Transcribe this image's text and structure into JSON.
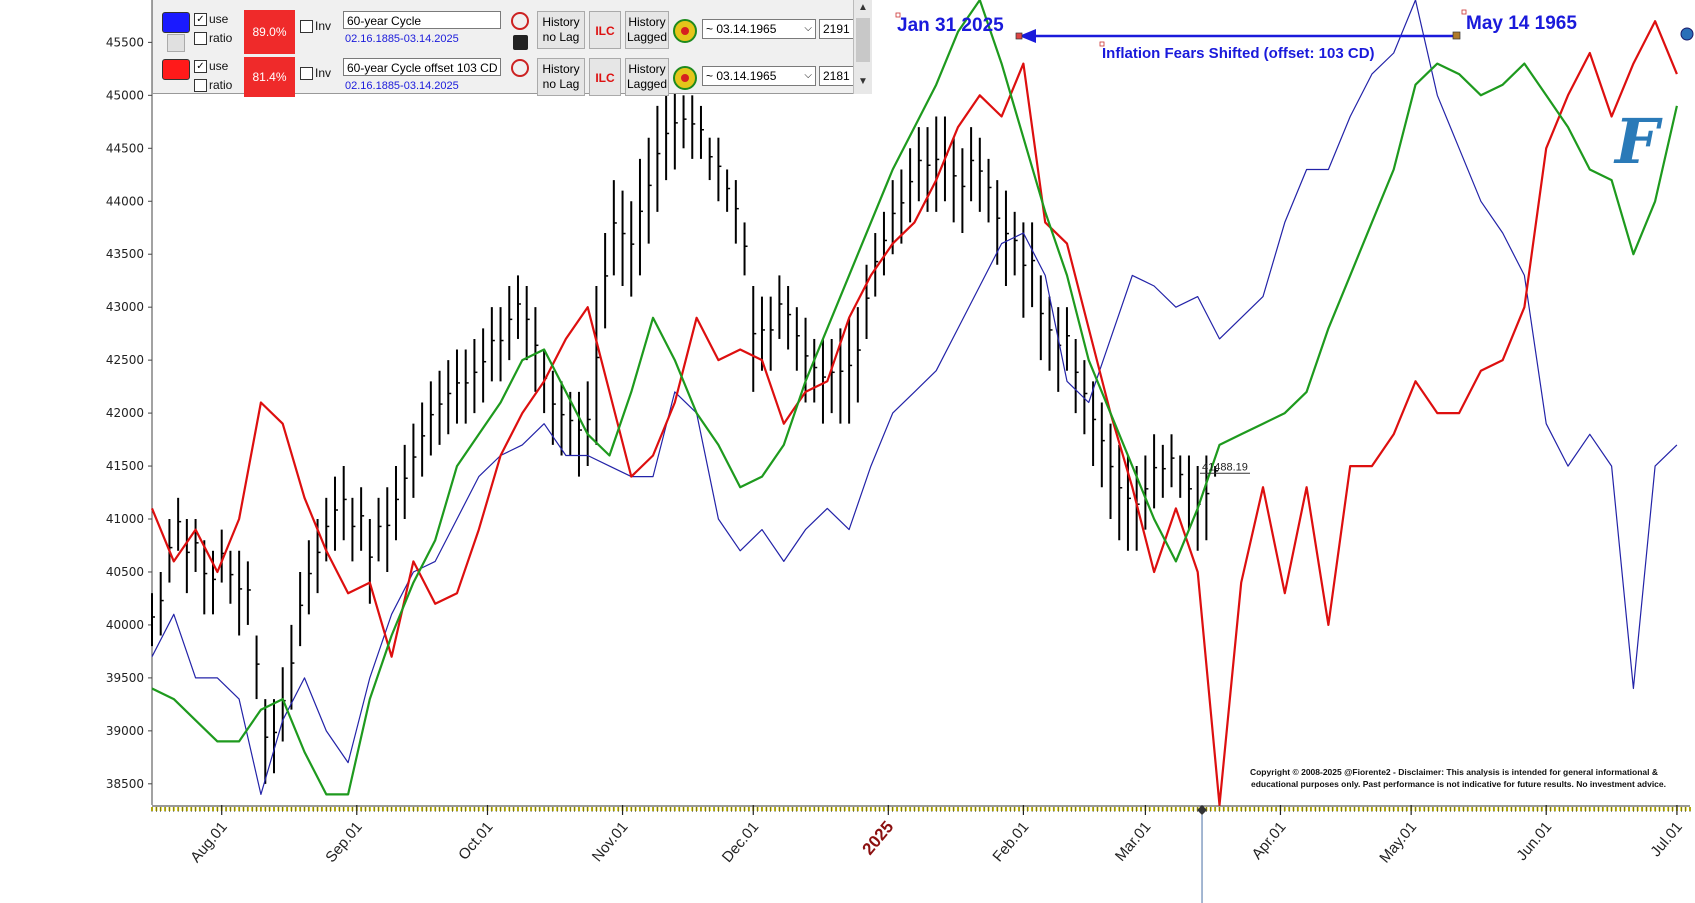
{
  "panel": {
    "rows": [
      {
        "color": "#1a1aff",
        "use_label": "use",
        "use_checked": "✓",
        "ratio_label": "ratio",
        "pct": "89.0%",
        "inv_label": "Inv",
        "cycle_name": "60-year Cycle",
        "range": "02.16.1885-03.14.2025",
        "btn_history_nolag": [
          "History",
          "no Lag"
        ],
        "btn_ilc": "ILC",
        "btn_history_lagged": [
          "History",
          "Lagged"
        ],
        "date_select": "~ 03.14.1965",
        "num": "2191"
      },
      {
        "color": "#ff1a1a",
        "use_label": "use",
        "use_checked": "✓",
        "ratio_label": "ratio",
        "pct": "81.4%",
        "inv_label": "Inv",
        "cycle_name": "60-year Cycle offset 103 CD",
        "range": "02.16.1885-03.14.2025",
        "btn_history_nolag": [
          "History",
          "no Lag"
        ],
        "btn_ilc": "ILC",
        "btn_history_lagged": [
          "History",
          "Lagged"
        ],
        "date_select": "~ 03.14.1965",
        "num": "2181"
      }
    ]
  },
  "annotations": {
    "left_date": "Jan 31 2025",
    "right_date": "May 14 1965",
    "arrow_text": "Inflation Fears Shifted (offset: 103 CD)",
    "price_label": "41488.19",
    "copyright_line1": "Copyright © 2008-2025 @Fiorente2 - Disclaimer: This analysis is intended for general informational &",
    "copyright_line2": "educational purposes only. Past performance is not indicative for future results. No investment advice.",
    "logo_letter": "F"
  },
  "colors": {
    "price_bars": "#000000",
    "cycle_blue": "#2323a8",
    "cycle_red": "#dd0f0f",
    "cycle_green": "#1e9a1e",
    "annotation": "#1a1adb"
  },
  "chart_data": {
    "type": "line",
    "ylim": [
      38300,
      45900
    ],
    "yticks": [
      38500,
      39000,
      39500,
      40000,
      40500,
      41000,
      41500,
      42000,
      42500,
      43000,
      43500,
      44000,
      44500,
      45000,
      45500
    ],
    "xlim": [
      0,
      353
    ],
    "month_ticks": [
      {
        "label": "Aug.01",
        "day": 16
      },
      {
        "label": "Sep.01",
        "day": 47
      },
      {
        "label": "Oct.01",
        "day": 77
      },
      {
        "label": "Nov.01",
        "day": 108
      },
      {
        "label": "Dec.01",
        "day": 138
      },
      {
        "label": "2025",
        "day": 169,
        "year": true
      },
      {
        "label": "Feb.01",
        "day": 200
      },
      {
        "label": "Mar.01",
        "day": 228
      },
      {
        "label": "Apr.01",
        "day": 259
      },
      {
        "label": "May.01",
        "day": 289
      },
      {
        "label": "Jun.01",
        "day": 320
      },
      {
        "label": "Jul.01",
        "day": 350
      }
    ],
    "current_day": 241,
    "legend": [],
    "series": [
      {
        "name": "60-year Cycle",
        "color": "#2323a8",
        "x": [
          0,
          5,
          10,
          15,
          20,
          25,
          30,
          35,
          40,
          45,
          50,
          55,
          60,
          65,
          70,
          75,
          80,
          85,
          90,
          95,
          100,
          105,
          110,
          115,
          120,
          125,
          130,
          135,
          140,
          145,
          150,
          155,
          160,
          165,
          170,
          175,
          180,
          185,
          190,
          195,
          200,
          205,
          210,
          215,
          220,
          225,
          230,
          235,
          240,
          245,
          250,
          255,
          260,
          265,
          270,
          275,
          280,
          285,
          290,
          295,
          300,
          305,
          310,
          315,
          320,
          325,
          330,
          335,
          340,
          345,
          350
        ],
        "y": [
          39700,
          40100,
          39500,
          39500,
          39300,
          38400,
          39100,
          39500,
          39000,
          38700,
          39500,
          40100,
          40500,
          40600,
          41000,
          41400,
          41600,
          41700,
          41900,
          41600,
          41600,
          41500,
          41400,
          41400,
          42200,
          42000,
          41000,
          40700,
          40900,
          40600,
          40900,
          41100,
          40900,
          41500,
          42000,
          42200,
          42400,
          42800,
          43200,
          43600,
          43700,
          43300,
          42300,
          42100,
          42700,
          43300,
          43200,
          43000,
          43100,
          42700,
          42900,
          43100,
          43800,
          44300,
          44300,
          44800,
          45200,
          45400,
          45900,
          45000,
          44500,
          44000,
          43700,
          43300,
          41900,
          41500,
          41800,
          41500,
          39400,
          41500,
          41700
        ]
      },
      {
        "name": "60-year Cycle offset 103 CD",
        "color": "#dd0f0f",
        "x": [
          0,
          5,
          10,
          15,
          20,
          25,
          30,
          35,
          40,
          45,
          50,
          55,
          60,
          65,
          70,
          75,
          80,
          85,
          90,
          95,
          100,
          105,
          110,
          115,
          120,
          125,
          130,
          135,
          140,
          145,
          150,
          155,
          160,
          165,
          170,
          175,
          180,
          185,
          190,
          195,
          200,
          205,
          210,
          215,
          220,
          225,
          230,
          235,
          240,
          245,
          250,
          255,
          260,
          265,
          270,
          275,
          280,
          285,
          290,
          295,
          300,
          305,
          310,
          315,
          320,
          325,
          330,
          335,
          340,
          345,
          350
        ],
        "y": [
          41100,
          40600,
          40900,
          40500,
          41000,
          42100,
          41900,
          41200,
          40700,
          40300,
          40400,
          39700,
          40600,
          40200,
          40300,
          40900,
          41600,
          42000,
          42300,
          42700,
          43000,
          42200,
          41400,
          41600,
          42100,
          42900,
          42500,
          42600,
          42500,
          41900,
          42200,
          42300,
          42900,
          43300,
          43600,
          43800,
          44200,
          44700,
          45000,
          44800,
          45300,
          43800,
          43600,
          42800,
          42000,
          41300,
          40500,
          41100,
          40500,
          38300,
          40400,
          41300,
          40300,
          41300,
          40000,
          41500,
          41500,
          41800,
          42300,
          42000,
          42000,
          42400,
          42500,
          43000,
          44500,
          45000,
          45400,
          44800,
          45300,
          45700,
          45200
        ]
      },
      {
        "name": "Green cycle",
        "color": "#1e9a1e",
        "x": [
          0,
          5,
          10,
          15,
          20,
          25,
          30,
          35,
          40,
          45,
          50,
          55,
          60,
          65,
          70,
          75,
          80,
          85,
          90,
          95,
          100,
          105,
          110,
          115,
          120,
          125,
          130,
          135,
          140,
          145,
          150,
          155,
          160,
          165,
          170,
          175,
          180,
          185,
          190,
          195,
          200,
          205,
          210,
          215,
          220,
          225,
          230,
          235,
          240,
          245,
          250,
          255,
          260,
          265,
          270,
          275,
          280,
          285,
          290,
          295,
          300,
          305,
          310,
          315,
          320,
          325,
          330,
          335,
          340,
          345,
          350
        ],
        "y": [
          39400,
          39300,
          39100,
          38900,
          38900,
          39200,
          39300,
          38800,
          38400,
          38400,
          39300,
          39900,
          40400,
          40800,
          41500,
          41800,
          42100,
          42500,
          42600,
          42200,
          41800,
          41600,
          42200,
          42900,
          42500,
          42000,
          41700,
          41300,
          41400,
          41700,
          42300,
          42800,
          43300,
          43800,
          44300,
          44700,
          45100,
          45600,
          45900,
          45300,
          44600,
          43900,
          43300,
          42500,
          42000,
          41500,
          41000,
          40600,
          41100,
          41700,
          41800,
          41900,
          42000,
          42200,
          42800,
          43300,
          43800,
          44300,
          45100,
          45300,
          45200,
          45000,
          45100,
          45300,
          45000,
          44700,
          44300,
          44200,
          43500,
          44000,
          44900
        ]
      }
    ],
    "ohlc": {
      "name": "Price",
      "x": [
        0,
        2,
        4,
        6,
        8,
        10,
        12,
        14,
        16,
        18,
        20,
        22,
        24,
        26,
        28,
        30,
        32,
        34,
        36,
        38,
        40,
        42,
        44,
        46,
        48,
        50,
        52,
        54,
        56,
        58,
        60,
        62,
        64,
        66,
        68,
        70,
        72,
        74,
        76,
        78,
        80,
        82,
        84,
        86,
        88,
        90,
        92,
        94,
        96,
        98,
        100,
        102,
        104,
        106,
        108,
        110,
        112,
        114,
        116,
        118,
        120,
        122,
        124,
        126,
        128,
        130,
        132,
        134,
        136,
        138,
        140,
        142,
        144,
        146,
        148,
        150,
        152,
        154,
        156,
        158,
        160,
        162,
        164,
        166,
        168,
        170,
        172,
        174,
        176,
        178,
        180,
        182,
        184,
        186,
        188,
        190,
        192,
        194,
        196,
        198,
        200,
        202,
        204,
        206,
        208,
        210,
        212,
        214,
        216,
        218,
        220,
        222,
        224,
        226,
        228,
        230,
        232,
        234,
        236,
        238,
        240,
        242,
        244
      ],
      "low": [
        39800,
        39900,
        40400,
        40700,
        40300,
        40500,
        40100,
        40100,
        40400,
        40200,
        39900,
        40000,
        39300,
        38500,
        38600,
        38900,
        39200,
        39800,
        40100,
        40300,
        40600,
        40700,
        40800,
        40600,
        40700,
        40200,
        40600,
        40500,
        40800,
        41000,
        41200,
        41400,
        41600,
        41700,
        41800,
        41900,
        41900,
        42000,
        42100,
        42300,
        42300,
        42500,
        42700,
        42500,
        42200,
        42000,
        41700,
        41600,
        41600,
        41400,
        41500,
        41700,
        42800,
        43300,
        43200,
        43100,
        43300,
        43600,
        43900,
        44200,
        44300,
        44500,
        44400,
        44400,
        44200,
        44000,
        43900,
        43600,
        43300,
        42200,
        42400,
        42400,
        42700,
        42600,
        42400,
        42100,
        42100,
        41900,
        42000,
        41900,
        41900,
        42100,
        42700,
        43100,
        43300,
        43500,
        43600,
        43800,
        44000,
        43900,
        43900,
        44000,
        43800,
        43700,
        44000,
        43900,
        43800,
        43400,
        43200,
        43300,
        42900,
        43000,
        42500,
        42400,
        42200,
        42400,
        42000,
        41800,
        41500,
        41300,
        41000,
        40800,
        40700,
        40700,
        40900,
        41100,
        41200,
        41300,
        41200,
        40900,
        40700,
        40800,
        41400
      ],
      "high": [
        40300,
        40500,
        41000,
        41200,
        41000,
        41000,
        40800,
        40700,
        40900,
        40700,
        40700,
        40600,
        39900,
        39300,
        39300,
        39600,
        40000,
        40500,
        40800,
        41000,
        41200,
        41400,
        41500,
        41200,
        41300,
        41000,
        41200,
        41300,
        41500,
        41700,
        41900,
        42100,
        42300,
        42400,
        42500,
        42600,
        42600,
        42700,
        42800,
        43000,
        43000,
        43200,
        43300,
        43200,
        43000,
        42600,
        42400,
        42300,
        42200,
        42200,
        42300,
        43200,
        43700,
        44200,
        44100,
        44000,
        44400,
        44600,
        44900,
        45000,
        45100,
        45000,
        45000,
        44900,
        44600,
        44600,
        44300,
        44200,
        43800,
        43200,
        43100,
        43100,
        43300,
        43200,
        43000,
        42900,
        42700,
        42700,
        42700,
        42800,
        42900,
        43000,
        43400,
        43700,
        43900,
        44200,
        44300,
        44500,
        44700,
        44700,
        44800,
        44800,
        44600,
        44500,
        44700,
        44600,
        44400,
        44200,
        44100,
        43900,
        43800,
        43800,
        43300,
        43100,
        43000,
        43000,
        42700,
        42500,
        42300,
        42100,
        41900,
        41700,
        41600,
        41500,
        41600,
        41800,
        41700,
        41800,
        41600,
        41600,
        41500,
        41600,
        41500
      ]
    }
  }
}
